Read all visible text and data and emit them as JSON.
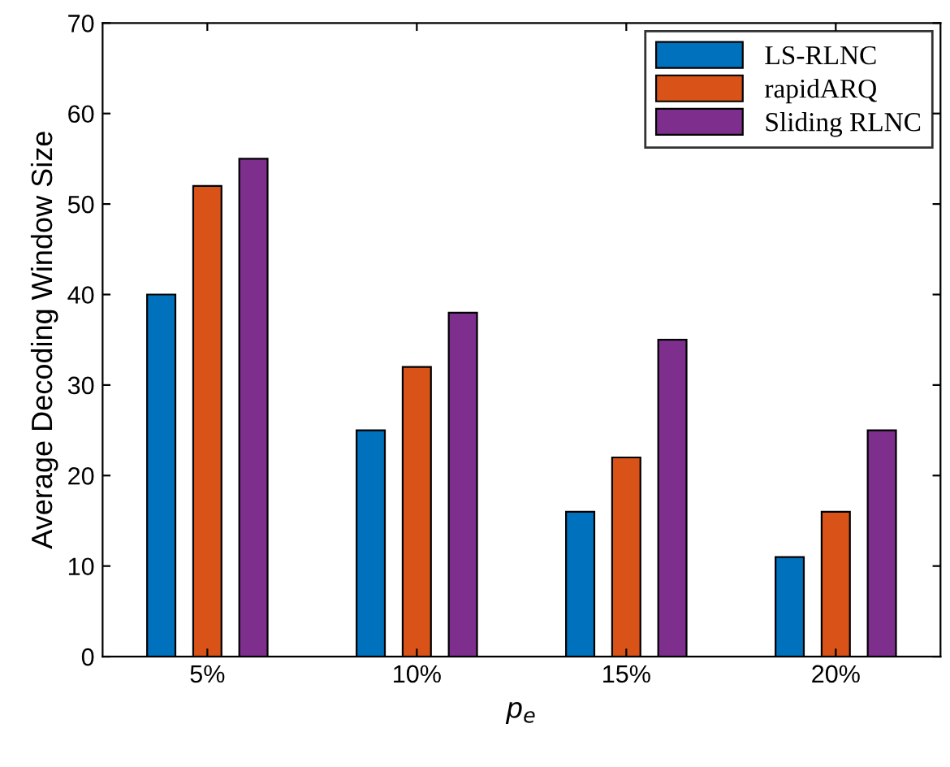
{
  "chart_data": {
    "type": "bar",
    "xlabel": "p$_{e}$",
    "ylabel": "Average Decoding Window Size",
    "categories": [
      "5%",
      "10%",
      "15%",
      "20%"
    ],
    "series": [
      {
        "name": "LS-RLNC",
        "color": "#0072bd",
        "values": [
          40,
          25,
          16,
          11
        ]
      },
      {
        "name": "rapidARQ",
        "color": "#d95319",
        "values": [
          52,
          32,
          22,
          16
        ]
      },
      {
        "name": "Sliding RLNC",
        "color": "#7e2f8e",
        "values": [
          55,
          38,
          35,
          25
        ]
      }
    ],
    "ylim": [
      0,
      70
    ],
    "yticks": [
      0,
      10,
      20,
      30,
      40,
      50,
      60,
      70
    ],
    "grid": false,
    "legend": "top right"
  }
}
